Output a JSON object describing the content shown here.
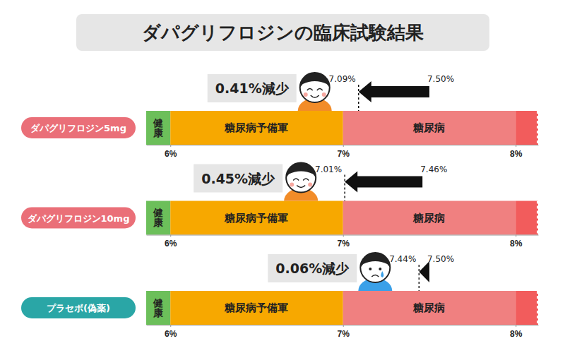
{
  "chart_data": {
    "type": "bullet",
    "title": "ダパグリフロジンの臨床試験結果",
    "orientation": "horizontal",
    "xlim": [
      5.86,
      8.13
    ],
    "xticks": [
      {
        "value": 6,
        "label": "6%"
      },
      {
        "value": 7,
        "label": "7%"
      },
      {
        "value": 8,
        "label": "8%"
      }
    ],
    "zones": [
      {
        "name": "健康",
        "start": 5.86,
        "end": 6,
        "color": "#6cbf5a"
      },
      {
        "name": "糖尿病予備軍",
        "start": 6,
        "end": 7,
        "color": "#f7a800"
      },
      {
        "name": "糖尿病",
        "start": 7,
        "end": 8,
        "color": "#f08080"
      },
      {
        "start": 8,
        "end": 8.13,
        "color": "#f25c5c"
      }
    ],
    "series": [
      {
        "name": "ダパグリフロジン5mg",
        "color": "#ea6f78",
        "marker": "smile",
        "values": [
          7.5,
          7.09
        ],
        "value_labels": [
          "7.50%",
          "7.09%"
        ],
        "annotation": "0.41%減少"
      },
      {
        "name": "ダパグリフロジン10mg",
        "color": "#ea6f78",
        "marker": "smile",
        "values": [
          7.46,
          7.01
        ],
        "value_labels": [
          "7.46%",
          "7.01%"
        ],
        "annotation": "0.45%減少"
      },
      {
        "name": "プラセボ(偽薬)",
        "color": "#2aa6a6",
        "marker": "cry",
        "values": [
          7.5,
          7.44
        ],
        "value_labels": [
          "7.50%",
          "7.44%"
        ],
        "annotation": "0.06%減少"
      }
    ]
  }
}
